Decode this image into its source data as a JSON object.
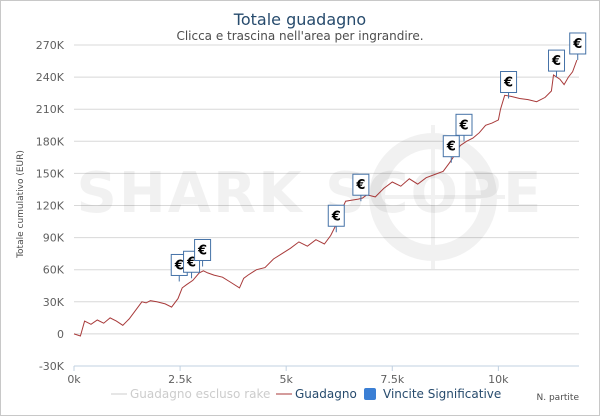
{
  "chart_data": {
    "type": "line",
    "title": "Totale guadagno",
    "subtitle": "Clicca e trascina nell'area per ingrandire.",
    "ylabel": "Totale cumulativo (EUR)",
    "xlabel": "N. partite",
    "xlim": [
      0,
      11900
    ],
    "ylim": [
      -30000,
      270000
    ],
    "x_ticks": [
      0,
      2500,
      5000,
      7500,
      10000
    ],
    "x_tick_labels": [
      "0k",
      "2.5k",
      "5k",
      "7.5k",
      "10k"
    ],
    "y_ticks": [
      -30000,
      0,
      30000,
      60000,
      90000,
      120000,
      150000,
      180000,
      210000,
      240000,
      270000
    ],
    "y_tick_labels": [
      "-30K",
      "0",
      "30K",
      "60K",
      "90K",
      "120K",
      "150K",
      "180K",
      "210K",
      "240K",
      "270K"
    ],
    "grid": "horizontal",
    "legend": "bottom-center",
    "watermark": "SHARK SCOPE",
    "colors": {
      "line": "#a83a3a",
      "marker_border": "#4572a7",
      "legend_marker": "#3b7fd4",
      "grid": "#d8d8d8"
    },
    "series": [
      {
        "name": "Guadagno escluso rake",
        "visible": false,
        "x": [],
        "y": []
      },
      {
        "name": "Guadagno",
        "x": [
          0,
          150,
          250,
          400,
          550,
          700,
          850,
          1000,
          1150,
          1300,
          1450,
          1600,
          1700,
          1800,
          1950,
          2150,
          2300,
          2450,
          2550,
          2650,
          2800,
          2950,
          3050,
          3150,
          3300,
          3500,
          3700,
          3900,
          4000,
          4100,
          4300,
          4500,
          4700,
          4900,
          5100,
          5300,
          5500,
          5700,
          5900,
          6050,
          6150,
          6250,
          6400,
          6550,
          6700,
          6800,
          6900,
          7100,
          7300,
          7500,
          7700,
          7900,
          8100,
          8300,
          8500,
          8700,
          8850,
          8950,
          9100,
          9250,
          9400,
          9550,
          9700,
          9850,
          10000,
          10050,
          10150,
          10300,
          10500,
          10700,
          10900,
          11100,
          11250,
          11300,
          11450,
          11550,
          11650,
          11750,
          11850
        ],
        "y": [
          0,
          -2000,
          12000,
          9000,
          13000,
          10000,
          15000,
          12000,
          8000,
          14000,
          22000,
          30000,
          29000,
          31000,
          30000,
          28000,
          25000,
          33000,
          43000,
          46000,
          50000,
          57000,
          59000,
          57000,
          55000,
          53000,
          48000,
          43000,
          52000,
          55000,
          60000,
          62000,
          70000,
          75000,
          80000,
          86000,
          82000,
          88000,
          84000,
          92000,
          100000,
          110000,
          124000,
          125000,
          126000,
          127000,
          130000,
          128000,
          136000,
          142000,
          138000,
          145000,
          140000,
          146000,
          149000,
          152000,
          160000,
          166000,
          176000,
          180000,
          183000,
          188000,
          195000,
          197000,
          200000,
          210000,
          223000,
          222000,
          220000,
          219000,
          217000,
          221000,
          227000,
          242000,
          238000,
          233000,
          240000,
          245000,
          256000
        ]
      },
      {
        "name": "Vincite Significative",
        "symbol": "€",
        "x": [
          2480,
          2770,
          3030,
          6180,
          6760,
          8890,
          9190,
          10240,
          11370,
          11870
        ],
        "y": [
          49000,
          52000,
          63000,
          95000,
          124000,
          160000,
          180000,
          220000,
          240000,
          256000
        ]
      }
    ]
  }
}
